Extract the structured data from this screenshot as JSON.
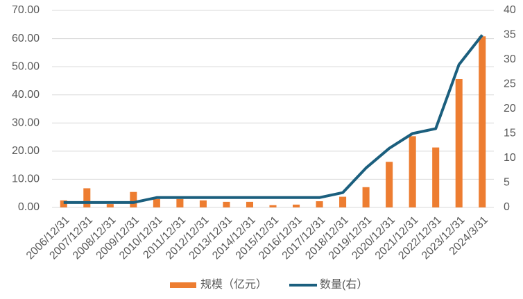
{
  "chart_data": {
    "type": "bar",
    "categories": [
      "2006/12/31",
      "2007/12/31",
      "2008/12/31",
      "2009/12/31",
      "2010/12/31",
      "2011/12/31",
      "2012/12/31",
      "2013/12/31",
      "2014/12/31",
      "2015/12/31",
      "2016/12/31",
      "2017/12/31",
      "2018/12/31",
      "2019/12/31",
      "2020/12/31",
      "2021/12/31",
      "2022/12/31",
      "2023/12/31",
      "2024/3/31"
    ],
    "series": [
      {
        "name": "规模（亿元）",
        "type": "bar",
        "color": "#ed7d31",
        "values": [
          2.5,
          6.8,
          1.2,
          5.5,
          3.0,
          3.0,
          2.5,
          2.0,
          2.0,
          0.8,
          1.0,
          2.2,
          3.8,
          7.2,
          16.2,
          25.3,
          21.3,
          45.6,
          60.8
        ]
      },
      {
        "name": "数量(右）",
        "type": "line",
        "axis": "y2",
        "color": "#1b5f7e",
        "values": [
          1,
          1,
          1,
          1,
          2,
          2,
          2,
          2,
          2,
          2,
          2,
          2,
          3,
          8,
          12,
          15,
          16,
          29,
          35
        ]
      }
    ],
    "ylim": [
      0,
      70
    ],
    "yticks": [
      {
        "value": 0,
        "label": "0.00"
      },
      {
        "value": 10,
        "label": "10.00"
      },
      {
        "value": 20,
        "label": "20.00"
      },
      {
        "value": 30,
        "label": "30.00"
      },
      {
        "value": 40,
        "label": "40.00"
      },
      {
        "value": 50,
        "label": "50.00"
      },
      {
        "value": 60,
        "label": "60.00"
      },
      {
        "value": 70,
        "label": "70.00"
      }
    ],
    "y2lim": [
      0,
      40
    ],
    "y2ticks": [
      0,
      5,
      10,
      15,
      20,
      25,
      30,
      35,
      40
    ],
    "grid": true,
    "legend": "bottom"
  }
}
